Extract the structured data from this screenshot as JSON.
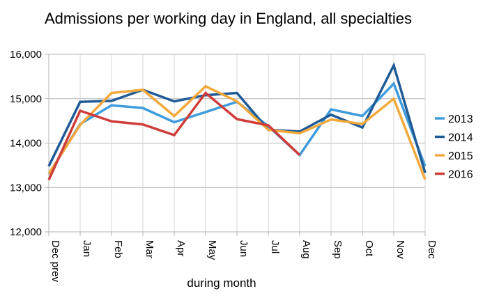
{
  "chart_data": {
    "type": "line",
    "title": "Admissions per working day in England, all specialties",
    "xlabel": "during month",
    "ylabel": "",
    "categories": [
      "Dec prev",
      "Jan",
      "Feb",
      "Mar",
      "Apr",
      "May",
      "Jun",
      "Jul",
      "Aug",
      "Sep",
      "Oct",
      "Nov",
      "Dec"
    ],
    "ylim": [
      12000,
      16000
    ],
    "yticks": [
      {
        "value": 12000,
        "label": "12,000"
      },
      {
        "value": 13000,
        "label": "13,000"
      },
      {
        "value": 14000,
        "label": "14,000"
      },
      {
        "value": 15000,
        "label": "15,000"
      },
      {
        "value": 16000,
        "label": "16,000"
      }
    ],
    "grid": true,
    "legend_position": "right",
    "series": [
      {
        "name": "2013",
        "color": "#3f9cdc",
        "values": [
          13300,
          14430,
          14850,
          14790,
          14470,
          14700,
          14930,
          14380,
          13730,
          14760,
          14610,
          15340,
          13480
        ]
      },
      {
        "name": "2014",
        "color": "#1f5b96",
        "values": [
          13480,
          14930,
          14950,
          15200,
          14940,
          15080,
          15130,
          14300,
          14260,
          14640,
          14350,
          15750,
          13330
        ]
      },
      {
        "name": "2015",
        "color": "#f2a93b",
        "values": [
          13310,
          14410,
          15130,
          15200,
          14610,
          15280,
          14940,
          14300,
          14220,
          14530,
          14430,
          15000,
          13180
        ]
      },
      {
        "name": "2016",
        "color": "#cf3d3a",
        "values": [
          13170,
          14730,
          14490,
          14420,
          14180,
          15130,
          14540,
          14400,
          13730,
          null,
          null,
          null,
          null
        ]
      }
    ]
  }
}
